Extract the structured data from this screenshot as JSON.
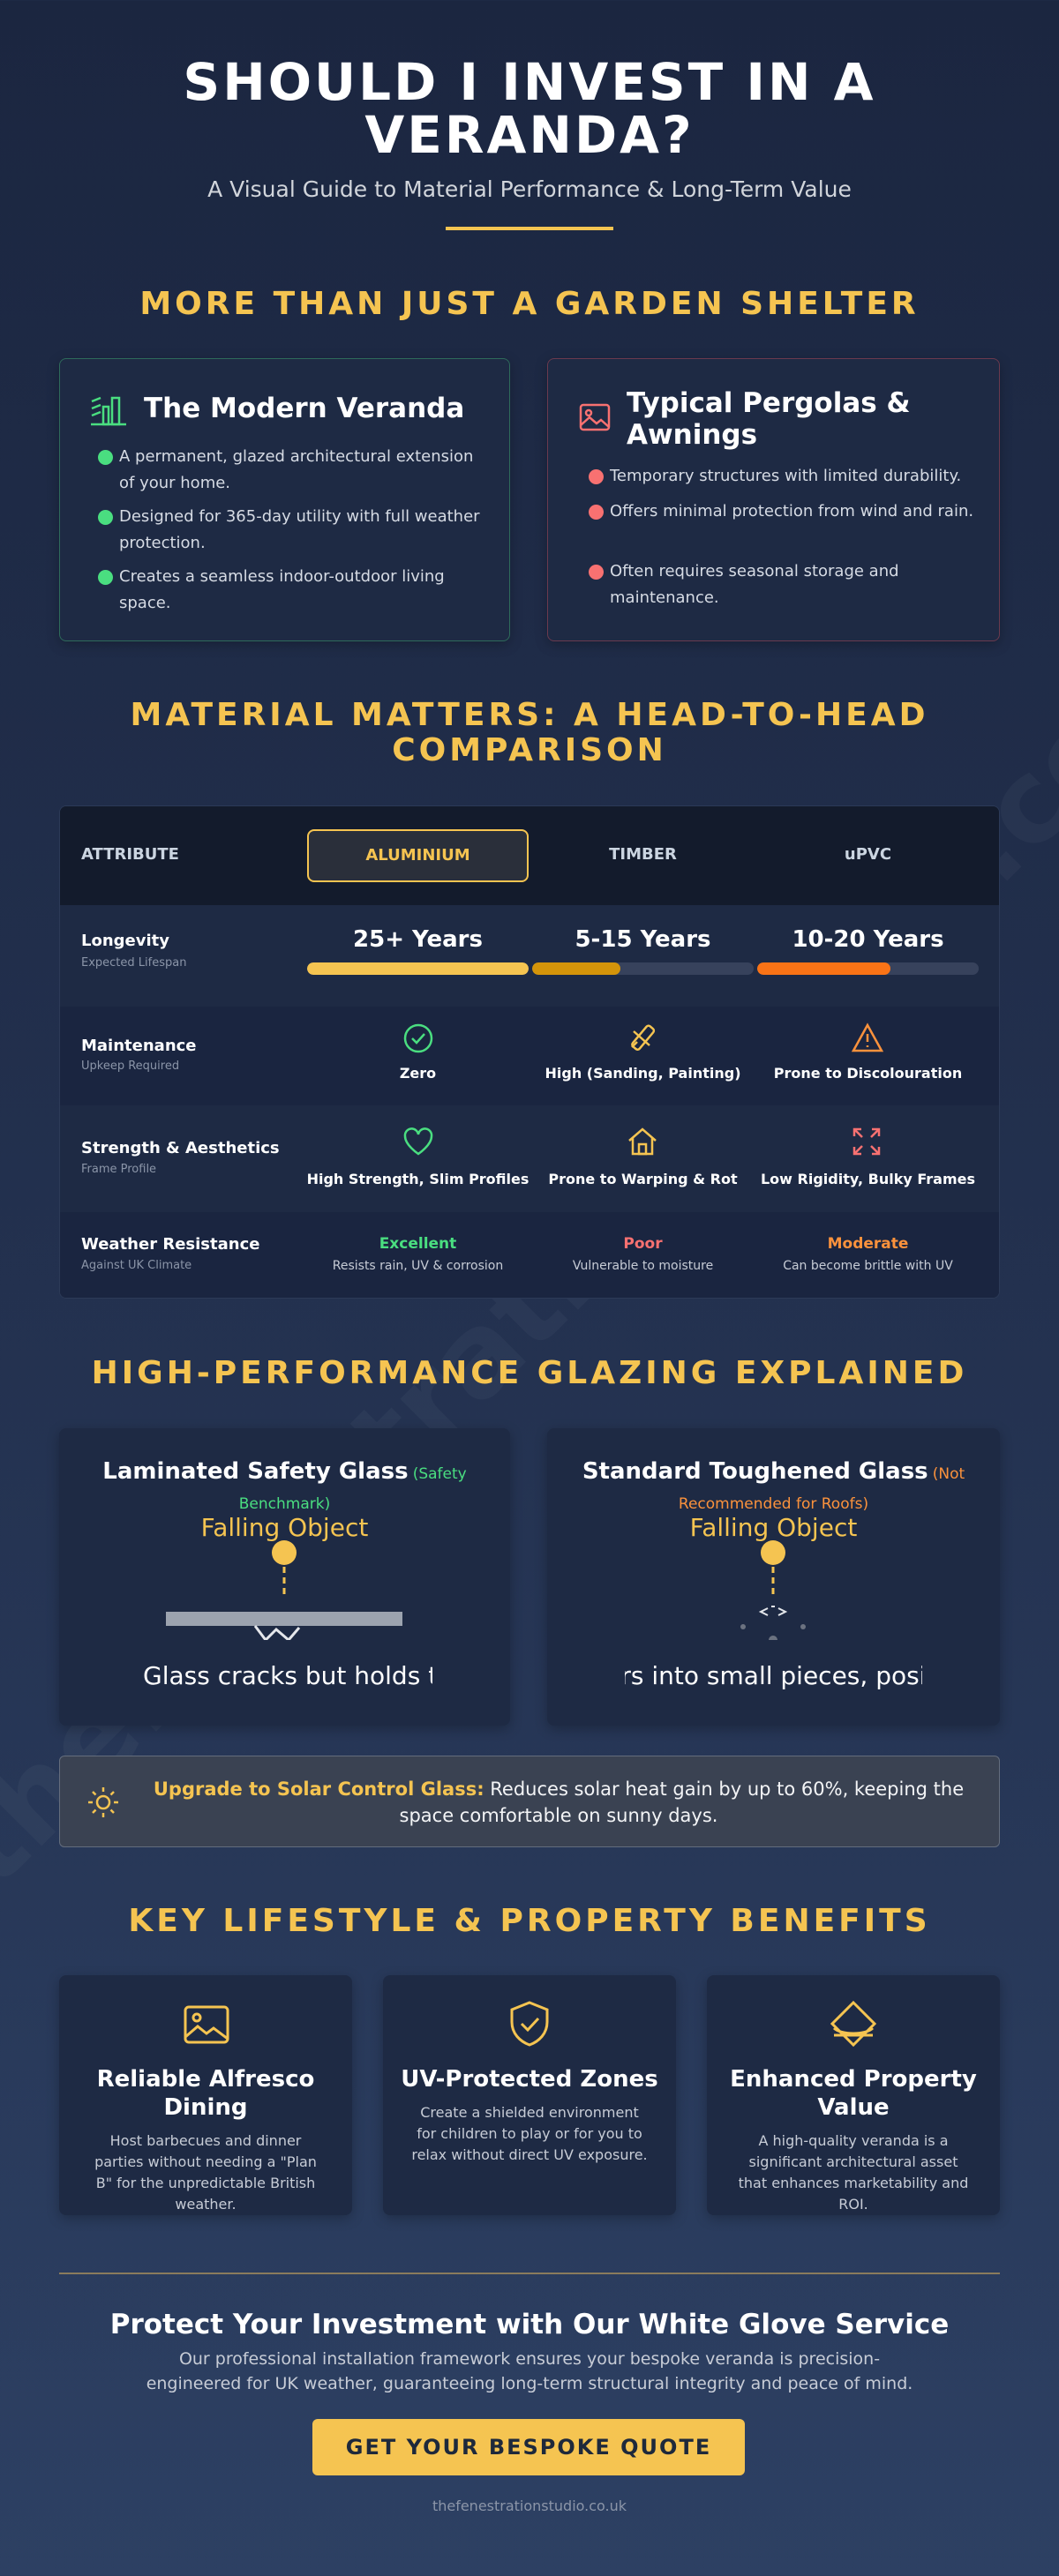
{
  "header": {
    "title": "SHOULD I INVEST IN A VERANDA?",
    "subtitle": "A Visual Guide to Material Performance & Long-Term Value"
  },
  "intro": {
    "heading": "MORE THAN JUST A GARDEN SHELTER",
    "cards": [
      {
        "title": "The Modern Veranda",
        "points": [
          "A permanent, glazed architectural extension of your home.",
          "Designed for 365-day utility with full weather protection.",
          "Creates a seamless indoor-outdoor living space."
        ]
      },
      {
        "title": "Typical Pergolas & Awnings",
        "points": [
          "Temporary structures with limited durability.",
          "Offers minimal protection from wind and rain.",
          "Often requires seasonal storage and maintenance."
        ]
      }
    ]
  },
  "comparison": {
    "heading": "MATERIAL MATTERS: A HEAD-TO-HEAD COMPARISON",
    "columns": [
      "ATTRIBUTE",
      "ALUMINIUM",
      "TIMBER",
      "uPVC"
    ],
    "rows": [
      {
        "label": "Longevity",
        "sublabel": "Expected Lifespan",
        "cells": [
          {
            "main": "25+ Years"
          },
          {
            "main": "5-15 Years"
          },
          {
            "main": "10-20 Years"
          }
        ]
      },
      {
        "label": "Maintenance",
        "sublabel": "Upkeep Required",
        "cells": [
          {
            "main": "Zero"
          },
          {
            "main": "High (Sanding, Painting)"
          },
          {
            "main": "Prone to Discolouration"
          }
        ]
      },
      {
        "label": "Strength & Aesthetics",
        "sublabel": "Frame Profile",
        "cells": [
          {
            "main": "High Strength, Slim Profiles"
          },
          {
            "main": "Prone to Warping & Rot"
          },
          {
            "main": "Low Rigidity, Bulky Frames"
          }
        ]
      },
      {
        "label": "Weather Resistance",
        "sublabel": "Against UK Climate",
        "cells": [
          {
            "main": "Excellent",
            "note": "Resists rain, UV & corrosion"
          },
          {
            "main": "Poor",
            "note": "Vulnerable to moisture"
          },
          {
            "main": "Moderate",
            "note": "Can become brittle with UV"
          }
        ]
      }
    ]
  },
  "glazing": {
    "heading": "HIGH-PERFORMANCE GLAZING EXPLAINED",
    "cards": [
      {
        "title": "Laminated Safety Glass",
        "tag": "(Safety Benchmark)",
        "label": "Falling Object",
        "caption": "Glass cracks but holds together, preventing injury."
      },
      {
        "title": "Standard Toughened Glass",
        "tag": "(Not Recommended for Roofs)",
        "label": "Falling Object",
        "caption": "Glass shatters into small pieces, posing a risk below."
      }
    ],
    "banner": {
      "strong": "Upgrade to Solar Control Glass:",
      "text": " Reduces solar heat gain by up to 60%, keeping the space comfortable on sunny days."
    }
  },
  "benefits": {
    "heading": "KEY LIFESTYLE & PROPERTY BENEFITS",
    "cards": [
      {
        "title": "Reliable Alfresco Dining",
        "text": "Host barbecues and dinner parties without needing a \"Plan B\" for the unpredictable British weather."
      },
      {
        "title": "UV-Protected Zones",
        "text": "Create a shielded environment for children to play or for you to relax without direct UV exposure."
      },
      {
        "title": "Enhanced Property Value",
        "text": "A high-quality veranda is a significant architectural asset that enhances marketability and ROI."
      }
    ]
  },
  "cta": {
    "heading": "Protect Your Investment with Our White Glove Service",
    "text": "Our professional installation framework ensures your bespoke veranda is precision-engineered for UK weather, guaranteeing long-term structural integrity and peace of mind.",
    "button": "GET YOUR BESPOKE QUOTE",
    "footer": "thefenestrationstudio.co.uk"
  },
  "watermark": "thefenestrationstudio.co.uk"
}
